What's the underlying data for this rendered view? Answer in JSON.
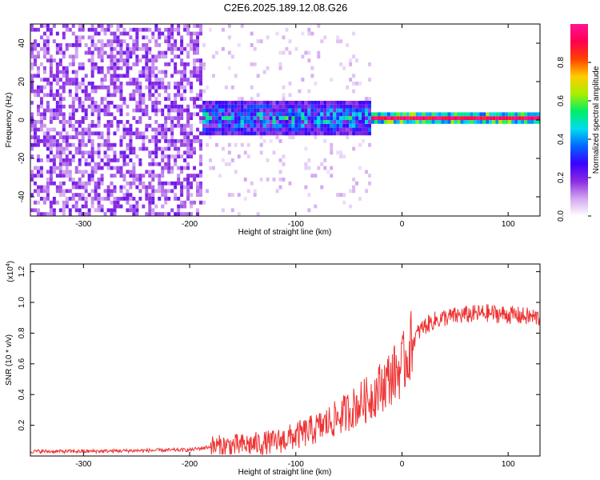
{
  "title": "C2E6.2025.189.12.08.G26",
  "chart_data": [
    {
      "type": "heatmap",
      "name": "spectrogram",
      "xlabel": "Height of straight line (km)",
      "ylabel": "Frequency (Hz)",
      "xlim": [
        -350,
        130
      ],
      "ylim": [
        -50,
        50
      ],
      "xticks": [
        -300,
        -200,
        -100,
        0,
        100
      ],
      "yticks": [
        -40,
        -20,
        0,
        20,
        40
      ],
      "colorbar": {
        "label": "Normalized spectral amplitude",
        "range": [
          0,
          1
        ],
        "ticks": [
          "0.0",
          "0.2",
          "0.4",
          "0.6",
          "0.8"
        ],
        "colors": [
          "#ffffff",
          "#d2a6f0",
          "#8a2be2",
          "#3a00ff",
          "#0066ff",
          "#00ddee",
          "#00ee66",
          "#aaee00",
          "#ffcc00",
          "#ff4000",
          "#ff0050",
          "#ff1493"
        ]
      },
      "description_points": {
        "noise_region": [
          -350,
          -190
        ],
        "transition_region": [
          -190,
          -30
        ],
        "stable_tone_region": [
          -30,
          130
        ],
        "tone_frequency_hz": 0,
        "tone_halfwidth_hz_transition": 8,
        "tone_halfwidth_hz_stable": 3
      },
      "grid": false
    },
    {
      "type": "line",
      "name": "snr",
      "xlabel": "Height of straight line (km)",
      "ylabel": "SNR (10 * v/v)",
      "yscale_label": "(x10",
      "yscale_exp": "4",
      "xlim": [
        -350,
        130
      ],
      "ylim": [
        0,
        1.25
      ],
      "xticks": [
        -300,
        -200,
        -100,
        0,
        100
      ],
      "yticks": [
        0.2,
        0.4,
        0.6,
        0.8,
        1.0,
        1.2
      ],
      "color": "#ee3333",
      "grid": false,
      "series": [
        {
          "x": [
            -350,
            -300,
            -250,
            -200,
            -180,
            -150,
            -120,
            -100,
            -80,
            -60,
            -40,
            -30,
            -20,
            -10,
            0,
            5,
            10,
            15,
            20,
            30,
            40,
            60,
            80,
            100,
            130
          ],
          "y": [
            0.03,
            0.03,
            0.035,
            0.04,
            0.06,
            0.07,
            0.09,
            0.13,
            0.18,
            0.25,
            0.34,
            0.38,
            0.45,
            0.52,
            0.58,
            0.66,
            0.74,
            0.8,
            0.84,
            0.88,
            0.9,
            0.92,
            0.93,
            0.92,
            0.9
          ]
        }
      ]
    }
  ]
}
